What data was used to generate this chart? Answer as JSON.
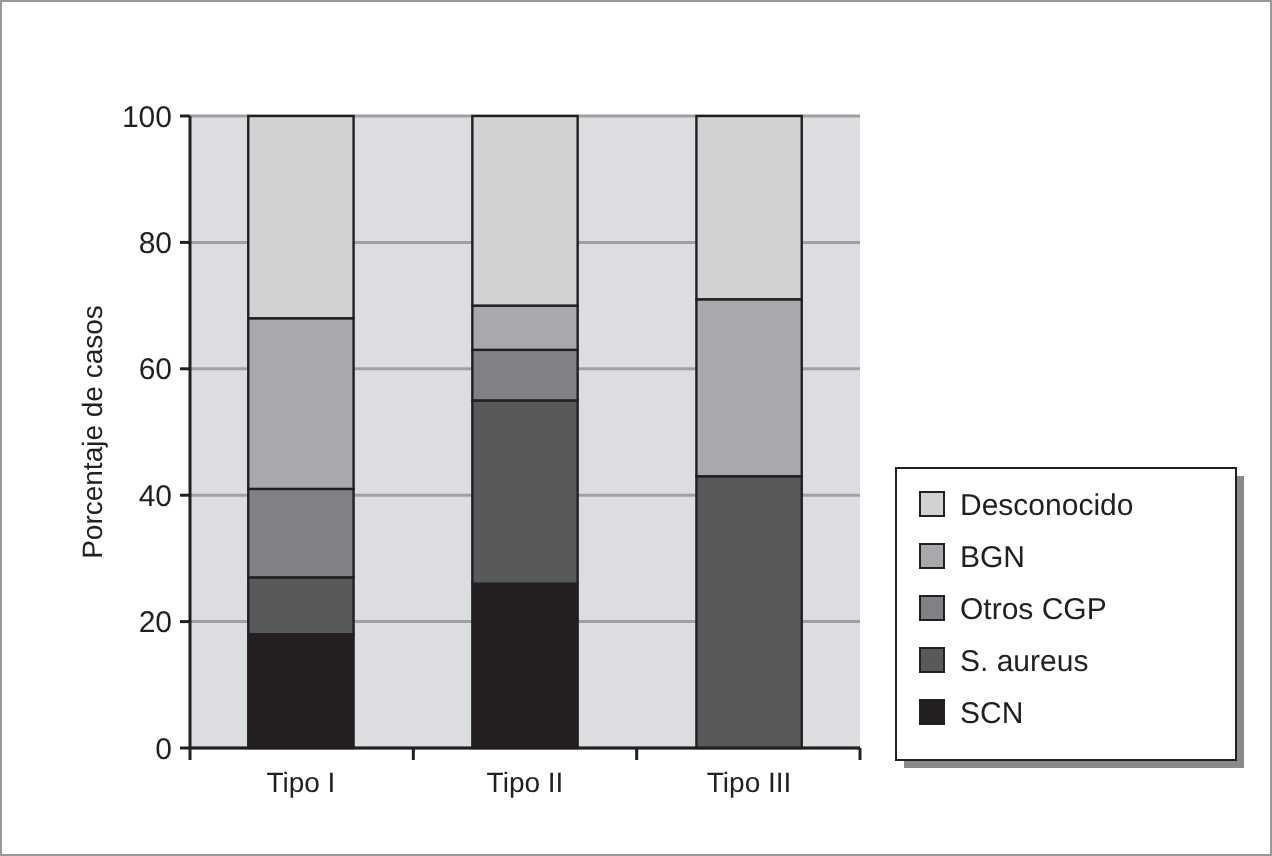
{
  "chart_data": {
    "type": "bar",
    "ylabel": "Porcentaje de casos",
    "categories": [
      "Tipo I",
      "Tipo II",
      "Tipo III"
    ],
    "stacked": true,
    "ylim": [
      0,
      100
    ],
    "yticks": [
      0,
      20,
      40,
      60,
      80,
      100
    ],
    "grid": "y",
    "legend": "right",
    "series": [
      {
        "name": "SCN",
        "color": "#231f20",
        "values": [
          18,
          26,
          0
        ]
      },
      {
        "name": "S. aureus",
        "color": "#58595b",
        "values": [
          9,
          29,
          43
        ]
      },
      {
        "name": "Otros CGP",
        "color": "#808184",
        "values": [
          14,
          8,
          0
        ]
      },
      {
        "name": "BGN",
        "color": "#a7a9ac",
        "values": [
          27,
          7,
          28
        ]
      },
      {
        "name": "Desconocido",
        "color": "#d1d2d4",
        "values": [
          32,
          30,
          29
        ]
      }
    ]
  }
}
